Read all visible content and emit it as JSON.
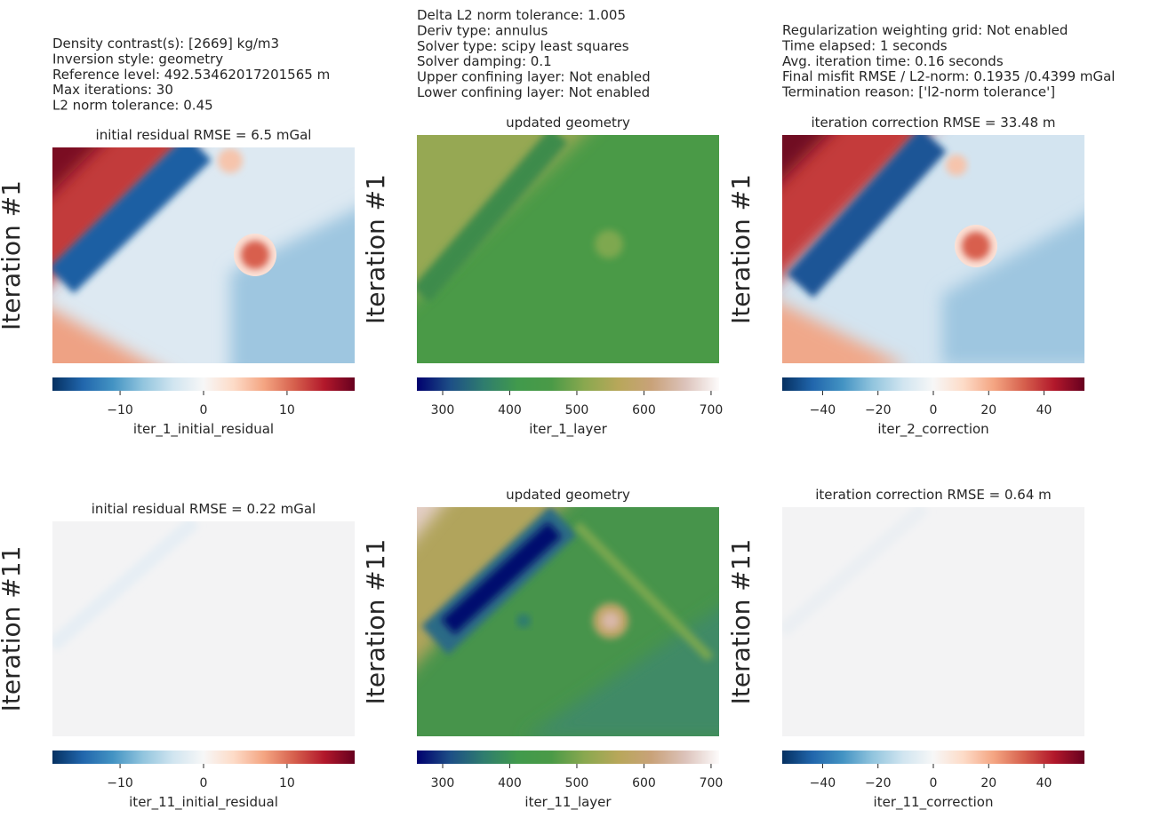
{
  "text_blocks": [
    [
      "Density contrast(s): [2669] kg/m3",
      "Inversion style: geometry",
      "Reference level: 492.53462017201565 m",
      "Max iterations: 30",
      "L2 norm tolerance: 0.45"
    ],
    [
      "Delta L2 norm tolerance: 1.005",
      "Deriv type: annulus",
      "Solver type: scipy least squares",
      "Solver damping: 0.1",
      "Upper confining layer: Not enabled",
      "Lower confining layer: Not enabled"
    ],
    [
      "Regularization weighting grid: Not enabled",
      "Time elapsed: 1 seconds",
      "Avg. iteration time: 0.16 seconds",
      "Final misfit RMSE / L2-norm: 0.1935 /0.4399 mGal",
      "Termination reason: ['l2-norm tolerance']"
    ]
  ],
  "chart_data": [
    {
      "type": "heatmap",
      "title": "initial residual RMSE = 6.5 mGal",
      "ylabel": "Iteration #1",
      "colorbar": {
        "label": "iter_1_initial_residual",
        "lim": [
          -18.1,
          18.1
        ],
        "ticks": [
          {
            "value": -10,
            "label": "−10"
          },
          0,
          10
        ],
        "colors": [
          "#053061",
          "#2166ac",
          "#4393c3",
          "#92c5de",
          "#d1e5f0",
          "#f7f7f7",
          "#fddbc7",
          "#f4a582",
          "#d6604d",
          "#b2182b",
          "#67001f"
        ]
      }
    },
    {
      "type": "heatmap",
      "title": "updated geometry",
      "ylabel": "Iteration #1",
      "colorbar": {
        "label": "iter_1_layer",
        "lim": [
          261.6,
          712
        ],
        "ticks": [
          300,
          400,
          500,
          600,
          700
        ],
        "colors": [
          "#00006e",
          "#1d4f86",
          "#2f7d6e",
          "#419a4c",
          "#4a9a47",
          "#8aa84f",
          "#b8a75a",
          "#c9a27a",
          "#dcc3bb",
          "#fdfbfb"
        ]
      }
    },
    {
      "type": "heatmap",
      "title": "iteration correction RMSE = 33.48 m",
      "ylabel": "Iteration #1",
      "colorbar": {
        "label": "iter_2_correction",
        "lim": [
          -54.6,
          54.6
        ],
        "ticks": [
          {
            "value": -40,
            "label": "−40"
          },
          {
            "value": -20,
            "label": "−20"
          },
          0,
          20,
          40
        ],
        "colors": [
          "#053061",
          "#2166ac",
          "#4393c3",
          "#92c5de",
          "#d1e5f0",
          "#f7f7f7",
          "#fddbc7",
          "#f4a582",
          "#d6604d",
          "#b2182b",
          "#67001f"
        ]
      }
    },
    {
      "type": "heatmap",
      "title": "initial residual RMSE = 0.22 mGal",
      "ylabel": "Iteration #11",
      "colorbar": {
        "label": "iter_11_initial_residual",
        "lim": [
          -18.1,
          18.1
        ],
        "ticks": [
          {
            "value": -10,
            "label": "−10"
          },
          0,
          10
        ],
        "colors": [
          "#053061",
          "#2166ac",
          "#4393c3",
          "#92c5de",
          "#d1e5f0",
          "#f7f7f7",
          "#fddbc7",
          "#f4a582",
          "#d6604d",
          "#b2182b",
          "#67001f"
        ]
      }
    },
    {
      "type": "heatmap",
      "title": "updated geometry",
      "ylabel": "Iteration #11",
      "colorbar": {
        "label": "iter_11_layer",
        "lim": [
          261.6,
          712
        ],
        "ticks": [
          300,
          400,
          500,
          600,
          700
        ],
        "colors": [
          "#00006e",
          "#1d4f86",
          "#2f7d6e",
          "#419a4c",
          "#4a9a47",
          "#8aa84f",
          "#b8a75a",
          "#c9a27a",
          "#dcc3bb",
          "#fdfbfb"
        ]
      }
    },
    {
      "type": "heatmap",
      "title": "iteration correction RMSE = 0.64 m",
      "ylabel": "Iteration #11",
      "colorbar": {
        "label": "iter_11_correction",
        "lim": [
          -54.6,
          54.6
        ],
        "ticks": [
          {
            "value": -40,
            "label": "−40"
          },
          {
            "value": -20,
            "label": "−20"
          },
          0,
          20,
          40
        ],
        "colors": [
          "#053061",
          "#2166ac",
          "#4393c3",
          "#92c5de",
          "#d1e5f0",
          "#f7f7f7",
          "#fddbc7",
          "#f4a582",
          "#d6604d",
          "#b2182b",
          "#67001f"
        ]
      }
    }
  ]
}
